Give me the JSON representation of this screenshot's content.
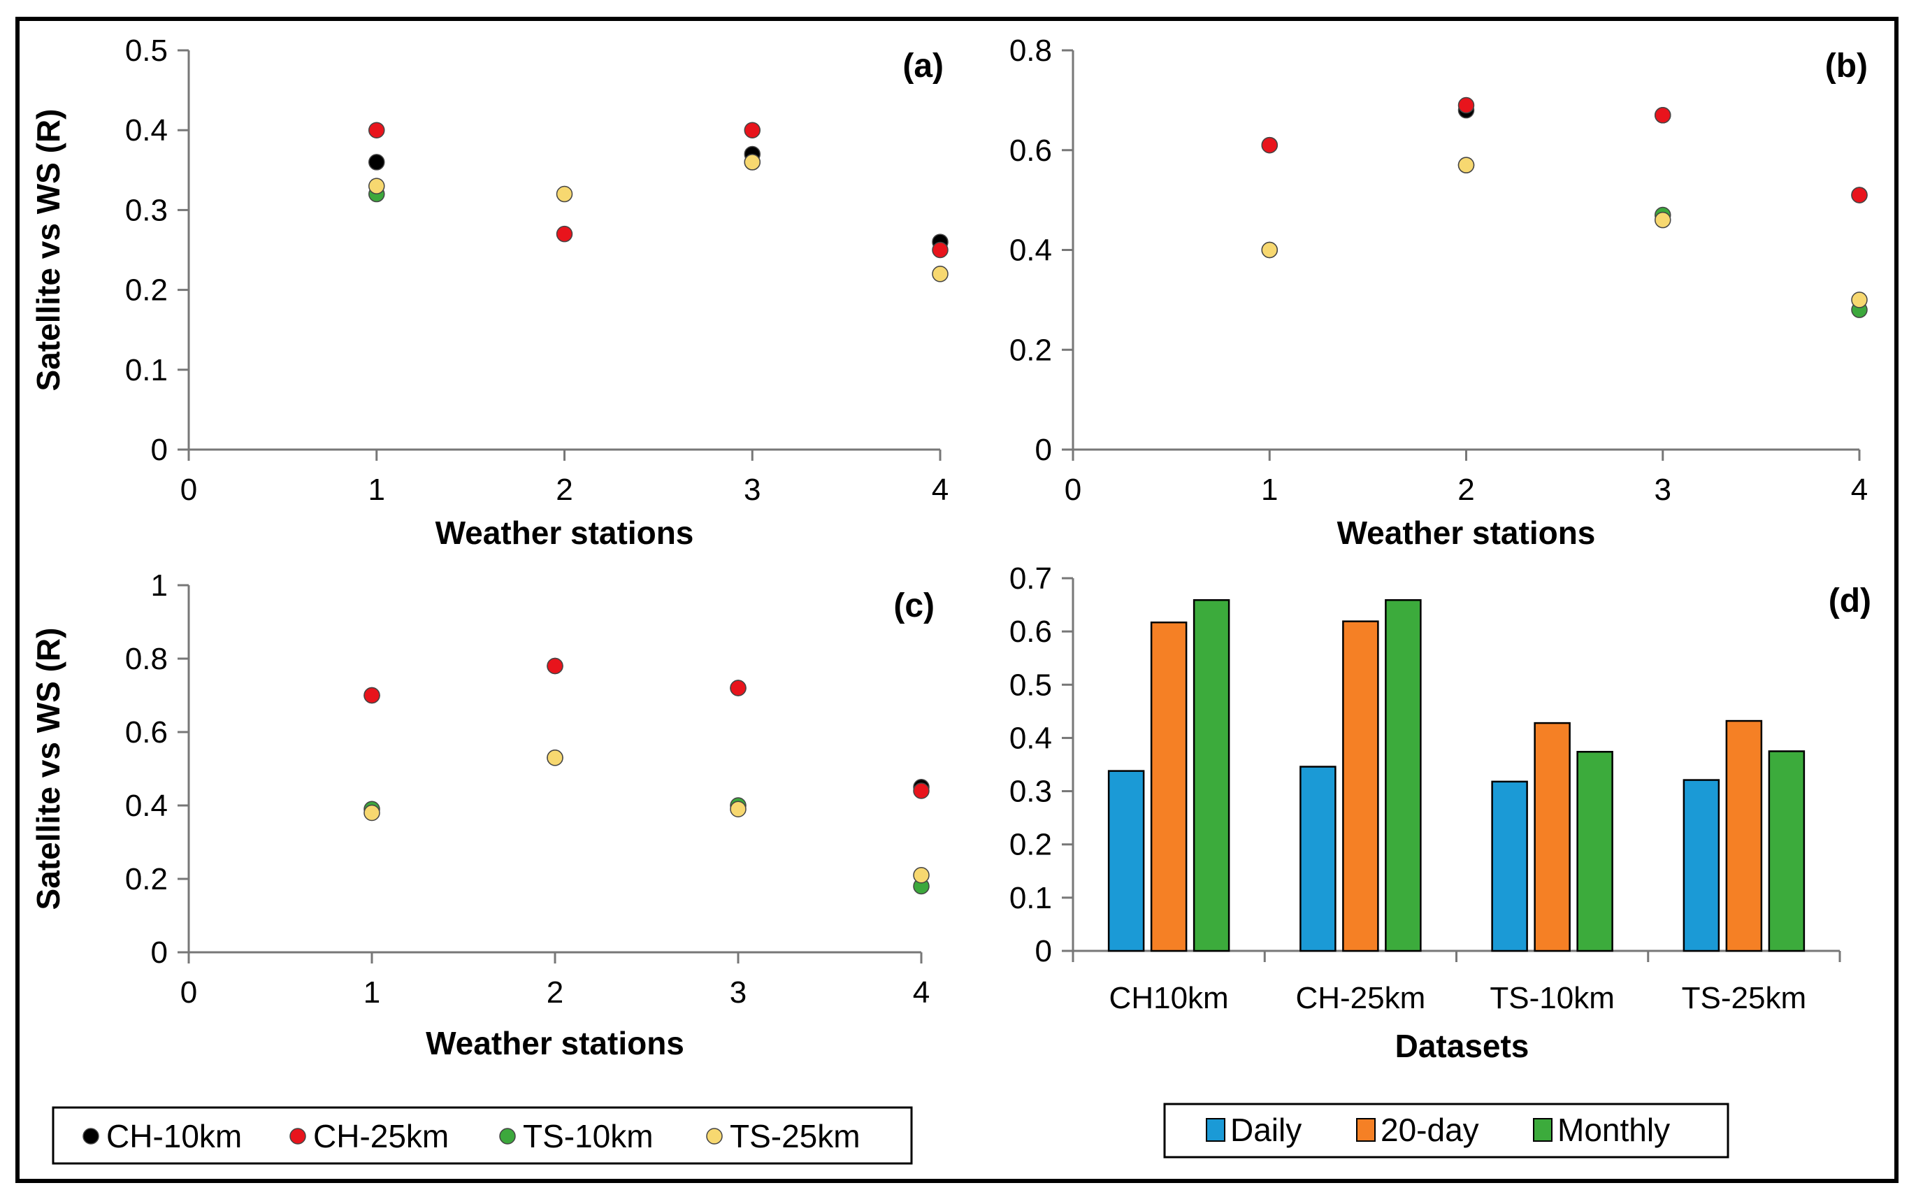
{
  "chart_data": [
    {
      "id": "a",
      "type": "scatter",
      "panel_label": "(a)",
      "xlabel": "Weather stations",
      "ylabel": "Satellite vs WS (R)",
      "xlim": [
        0,
        4
      ],
      "ylim": [
        0,
        0.5
      ],
      "xticks": [
        0,
        1,
        2,
        3,
        4
      ],
      "yticks": [
        0,
        0.1,
        0.2,
        0.3,
        0.4,
        0.5
      ],
      "yticklabels": [
        "0",
        "0.1",
        "0.2",
        "0.3",
        "0.4",
        "0.5"
      ],
      "series": [
        {
          "name": "CH-10km",
          "color": "#000000",
          "x": [
            1,
            3,
            4
          ],
          "y": [
            0.36,
            0.37,
            0.26
          ]
        },
        {
          "name": "TS-10km",
          "color": "#3ca83c",
          "x": [
            1,
            3
          ],
          "y": [
            0.32,
            0.36
          ]
        },
        {
          "name": "TS-25km",
          "color": "#f7d870",
          "x": [
            1,
            2,
            3,
            4
          ],
          "y": [
            0.33,
            0.32,
            0.36,
            0.22
          ]
        },
        {
          "name": "CH-25km",
          "color": "#e8141c",
          "x": [
            1,
            2,
            3,
            4
          ],
          "y": [
            0.4,
            0.27,
            0.4,
            0.25
          ]
        }
      ]
    },
    {
      "id": "b",
      "type": "scatter",
      "panel_label": "(b)",
      "xlabel": "Weather stations",
      "ylabel": "",
      "xlim": [
        0,
        4
      ],
      "ylim": [
        0,
        0.8
      ],
      "xticks": [
        0,
        1,
        2,
        3,
        4
      ],
      "yticks": [
        0,
        0.2,
        0.4,
        0.6,
        0.8
      ],
      "yticklabels": [
        "0",
        "0.2",
        "0.4",
        "0.6",
        "0.8"
      ],
      "series": [
        {
          "name": "CH-10km",
          "color": "#000000",
          "x": [
            1,
            2,
            3,
            4
          ],
          "y": [
            0.61,
            0.68,
            0.67,
            0.51
          ]
        },
        {
          "name": "TS-10km",
          "color": "#3ca83c",
          "x": [
            1,
            2,
            3,
            4
          ],
          "y": [
            0.4,
            0.57,
            0.47,
            0.28
          ]
        },
        {
          "name": "TS-25km",
          "color": "#f7d870",
          "x": [
            1,
            2,
            3,
            4
          ],
          "y": [
            0.4,
            0.57,
            0.46,
            0.3
          ]
        },
        {
          "name": "CH-25km",
          "color": "#e8141c",
          "x": [
            1,
            2,
            3,
            4
          ],
          "y": [
            0.61,
            0.69,
            0.67,
            0.51
          ]
        }
      ]
    },
    {
      "id": "c",
      "type": "scatter",
      "panel_label": "(c)",
      "xlabel": "Weather stations",
      "ylabel": "Satellite vs WS  (R)",
      "xlim": [
        0,
        4
      ],
      "ylim": [
        0,
        1
      ],
      "xticks": [
        0,
        1,
        2,
        3,
        4
      ],
      "yticks": [
        0,
        0.2,
        0.4,
        0.6,
        0.8,
        1
      ],
      "yticklabels": [
        "0",
        "0.2",
        "0.4",
        "0.6",
        "0.8",
        "1"
      ],
      "series": [
        {
          "name": "CH-10km",
          "color": "#000000",
          "x": [
            1,
            2,
            3,
            4
          ],
          "y": [
            0.7,
            0.78,
            0.72,
            0.45
          ]
        },
        {
          "name": "TS-10km",
          "color": "#3ca83c",
          "x": [
            1,
            2,
            3,
            4
          ],
          "y": [
            0.39,
            0.53,
            0.4,
            0.18
          ]
        },
        {
          "name": "TS-25km",
          "color": "#f7d870",
          "x": [
            1,
            2,
            3,
            4
          ],
          "y": [
            0.38,
            0.53,
            0.39,
            0.21
          ]
        },
        {
          "name": "CH-25km",
          "color": "#e8141c",
          "x": [
            1,
            2,
            3,
            4
          ],
          "y": [
            0.7,
            0.78,
            0.72,
            0.44
          ]
        }
      ]
    },
    {
      "id": "d",
      "type": "bar",
      "panel_label": "(d)",
      "xlabel": "Datasets",
      "ylabel": "",
      "ylim": [
        0,
        0.7
      ],
      "yticks": [
        0,
        0.1,
        0.2,
        0.3,
        0.4,
        0.5,
        0.6,
        0.7
      ],
      "yticklabels": [
        "0",
        "0.1",
        "0.2",
        "0.3",
        "0.4",
        "0.5",
        "0.6",
        "0.7"
      ],
      "categories": [
        "CH10km",
        "CH-25km",
        "TS-10km",
        "TS-25km"
      ],
      "series": [
        {
          "name": "Daily",
          "color": "#1b9ad6",
          "values": [
            0.338,
            0.346,
            0.318,
            0.321
          ]
        },
        {
          "name": "20-day",
          "color": "#f58025",
          "values": [
            0.617,
            0.619,
            0.428,
            0.432
          ]
        },
        {
          "name": "Monthly",
          "color": "#3cab3c",
          "values": [
            0.659,
            0.659,
            0.374,
            0.375
          ]
        }
      ]
    }
  ],
  "legends": {
    "scatter": [
      {
        "label": "CH-10km",
        "color": "#000000"
      },
      {
        "label": "CH-25km",
        "color": "#e8141c"
      },
      {
        "label": "TS-10km",
        "color": "#3ca83c"
      },
      {
        "label": "TS-25km",
        "color": "#f7d870"
      }
    ],
    "bar": [
      {
        "label": "Daily",
        "color": "#1b9ad6"
      },
      {
        "label": "20-day",
        "color": "#f58025"
      },
      {
        "label": "Monthly",
        "color": "#3cab3c"
      }
    ]
  }
}
